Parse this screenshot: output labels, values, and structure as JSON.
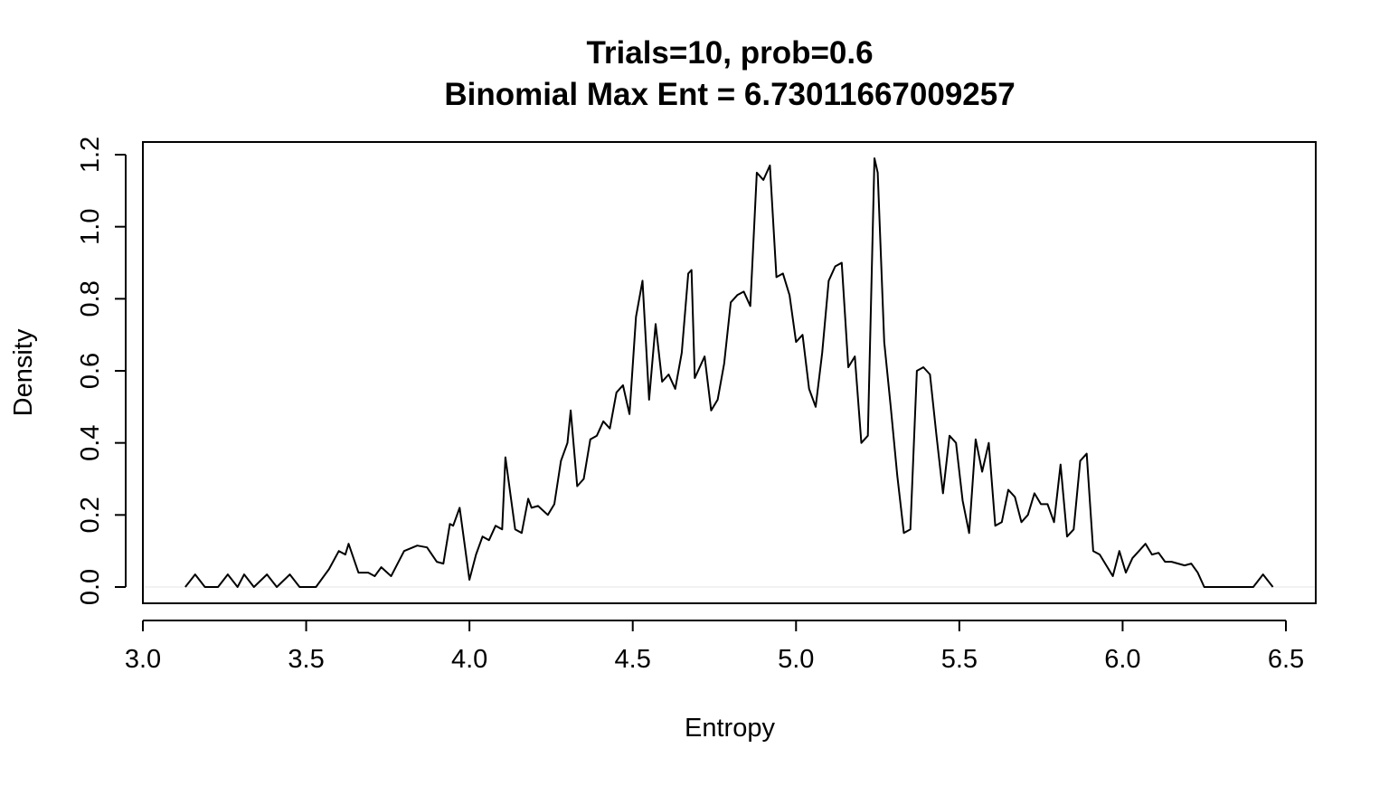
{
  "chart_data": {
    "type": "line",
    "title": "Trials=10, prob=0.6",
    "subtitle": "Binomial Max Ent =  6.73011667009257",
    "xlabel": "Entropy",
    "ylabel": "Density",
    "xlim": [
      3.0,
      6.5
    ],
    "ylim": [
      0.0,
      1.2
    ],
    "xticks": [
      "3.0",
      "3.5",
      "4.0",
      "4.5",
      "5.0",
      "5.5",
      "6.0",
      "6.5"
    ],
    "yticks": [
      "0.0",
      "0.2",
      "0.4",
      "0.6",
      "0.8",
      "1.0",
      "1.2"
    ],
    "grid": false,
    "series": [
      {
        "x": [
          3.13,
          3.16,
          3.19,
          3.23,
          3.26,
          3.29,
          3.31,
          3.34,
          3.38,
          3.41,
          3.45,
          3.48,
          3.53,
          3.57,
          3.6,
          3.62,
          3.63,
          3.66,
          3.69,
          3.71,
          3.73,
          3.76,
          3.8,
          3.84,
          3.87,
          3.9,
          3.92,
          3.94,
          3.95,
          3.97,
          4.0,
          4.02,
          4.04,
          4.06,
          4.08,
          4.1,
          4.11,
          4.14,
          4.16,
          4.18,
          4.19,
          4.21,
          4.24,
          4.26,
          4.28,
          4.3,
          4.31,
          4.33,
          4.35,
          4.37,
          4.39,
          4.41,
          4.43,
          4.45,
          4.47,
          4.49,
          4.51,
          4.53,
          4.55,
          4.57,
          4.59,
          4.61,
          4.63,
          4.65,
          4.67,
          4.68,
          4.69,
          4.72,
          4.74,
          4.76,
          4.78,
          4.8,
          4.82,
          4.84,
          4.86,
          4.88,
          4.9,
          4.92,
          4.94,
          4.96,
          4.98,
          5.0,
          5.02,
          5.04,
          5.06,
          5.08,
          5.1,
          5.12,
          5.14,
          5.16,
          5.18,
          5.2,
          5.22,
          5.24,
          5.25,
          5.27,
          5.29,
          5.31,
          5.33,
          5.35,
          5.37,
          5.39,
          5.41,
          5.43,
          5.45,
          5.47,
          5.49,
          5.51,
          5.53,
          5.55,
          5.57,
          5.59,
          5.61,
          5.63,
          5.65,
          5.67,
          5.69,
          5.71,
          5.73,
          5.75,
          5.77,
          5.79,
          5.81,
          5.83,
          5.85,
          5.87,
          5.89,
          5.91,
          5.93,
          5.95,
          5.97,
          5.99,
          6.01,
          6.03,
          6.05,
          6.07,
          6.09,
          6.11,
          6.13,
          6.15,
          6.17,
          6.19,
          6.21,
          6.23,
          6.25,
          6.3,
          6.35,
          6.4,
          6.43,
          6.46
        ],
        "y": [
          0.0,
          0.035,
          0.0,
          0.0,
          0.035,
          0.0,
          0.035,
          0.0,
          0.035,
          0.0,
          0.035,
          0.0,
          0.0,
          0.05,
          0.1,
          0.09,
          0.12,
          0.04,
          0.04,
          0.03,
          0.055,
          0.03,
          0.1,
          0.115,
          0.11,
          0.07,
          0.065,
          0.175,
          0.17,
          0.22,
          0.02,
          0.09,
          0.14,
          0.13,
          0.17,
          0.16,
          0.36,
          0.16,
          0.15,
          0.245,
          0.22,
          0.225,
          0.2,
          0.23,
          0.35,
          0.4,
          0.49,
          0.28,
          0.3,
          0.41,
          0.42,
          0.46,
          0.44,
          0.54,
          0.56,
          0.48,
          0.75,
          0.85,
          0.52,
          0.73,
          0.57,
          0.59,
          0.55,
          0.65,
          0.87,
          0.88,
          0.58,
          0.64,
          0.49,
          0.52,
          0.62,
          0.79,
          0.81,
          0.82,
          0.78,
          1.15,
          1.13,
          1.17,
          0.86,
          0.87,
          0.81,
          0.68,
          0.7,
          0.55,
          0.5,
          0.65,
          0.85,
          0.89,
          0.9,
          0.61,
          0.64,
          0.4,
          0.42,
          1.19,
          1.15,
          0.68,
          0.5,
          0.31,
          0.15,
          0.16,
          0.6,
          0.61,
          0.59,
          0.42,
          0.26,
          0.42,
          0.4,
          0.24,
          0.15,
          0.41,
          0.32,
          0.4,
          0.17,
          0.18,
          0.27,
          0.25,
          0.18,
          0.2,
          0.26,
          0.23,
          0.23,
          0.18,
          0.34,
          0.14,
          0.16,
          0.35,
          0.37,
          0.1,
          0.09,
          0.06,
          0.03,
          0.1,
          0.04,
          0.08,
          0.1,
          0.12,
          0.09,
          0.095,
          0.07,
          0.07,
          0.065,
          0.06,
          0.065,
          0.04,
          0.0,
          0.0,
          0.0,
          0.0,
          0.035,
          0.0
        ]
      }
    ]
  }
}
